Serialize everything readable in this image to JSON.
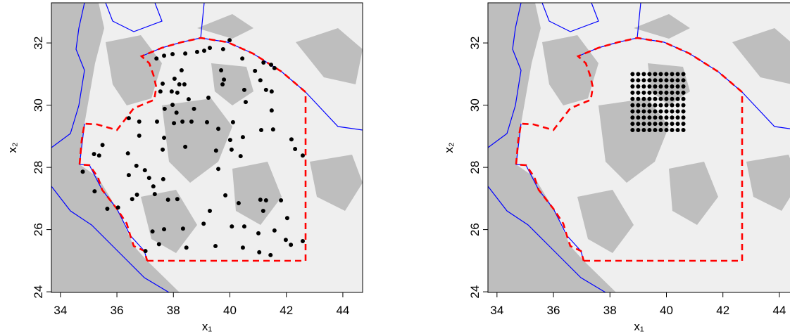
{
  "chart_data": [
    {
      "type": "scatter",
      "x_label": "x₁",
      "y_label": "x₂",
      "xlim": [
        33.68,
        44.7
      ],
      "ylim": [
        23.98,
        33.29
      ],
      "xticks": [
        34,
        36,
        38,
        40,
        42,
        44
      ],
      "yticks": [
        24,
        26,
        28,
        30,
        32
      ],
      "series": [
        {
          "color": "#000000",
          "x": [
            37.4,
            37.67,
            37.97,
            38.42,
            38.84,
            39.09,
            39.29,
            39.76,
            39.99,
            40.44,
            40.89,
            41.19,
            41.46,
            41.58,
            38.29,
            38.04,
            37.62,
            37.54,
            37.94,
            38.21,
            38.39,
            38.14,
            38.54,
            39.24,
            39.69,
            39.79,
            39.74,
            40.51,
            40.56,
            41.08,
            41.28,
            41.48,
            41.48,
            41.53,
            38.11,
            38.73,
            37.97,
            37.69,
            36.79,
            36.42,
            36.79,
            37.42,
            38.02,
            38.32,
            38.64,
            39.19,
            39.59,
            40.11,
            40.01,
            40.46,
            40.06,
            40.38,
            41.11,
            42.18,
            42.31,
            42.58,
            37.67,
            37.62,
            38.42,
            39.51,
            39.59,
            36.39,
            36.69,
            36.99,
            36.42,
            37.14,
            37.64,
            35.49,
            35.37,
            34.79,
            35.21,
            36.71,
            37.29,
            37.34,
            36.54,
            37.81,
            38.14,
            39.84,
            40.31,
            41.08,
            41.28,
            41.81,
            41.18,
            39.29,
            38.34,
            37.67,
            40.07,
            39.07,
            40.51,
            41.58,
            41.01,
            41.98,
            42.16,
            42.58,
            42.03,
            37.26,
            37.49,
            38.46,
            39.49,
            40.46,
            41.04,
            41.44,
            37.01,
            36.04,
            35.66,
            35.19
          ],
          "y": [
            31.5,
            31.59,
            31.64,
            31.66,
            31.71,
            31.75,
            31.84,
            31.8,
            32.09,
            31.5,
            31.1,
            31.37,
            31.3,
            31.19,
            31.12,
            30.85,
            30.69,
            30.44,
            30.44,
            30.67,
            30.67,
            30.4,
            30.19,
            30.24,
            31.12,
            30.82,
            30.67,
            30.49,
            30.1,
            30.8,
            30.49,
            30.44,
            29.83,
            29.22,
            29.76,
            29.88,
            30.01,
            29.88,
            29.02,
            29.58,
            29.47,
            29.47,
            29.42,
            29.47,
            29.47,
            29.45,
            29.24,
            29.45,
            28.88,
            28.97,
            28.57,
            28.36,
            29.2,
            28.9,
            28.59,
            28.38,
            28.95,
            28.57,
            28.66,
            28.54,
            27.95,
            28.45,
            28.05,
            27.91,
            27.75,
            27.66,
            27.62,
            28.72,
            28.38,
            27.86,
            27.23,
            27.12,
            27.39,
            27.14,
            26.98,
            26.96,
            26.98,
            27.1,
            26.85,
            26.96,
            26.94,
            26.94,
            26.6,
            26.6,
            26.03,
            26.01,
            26.1,
            26.19,
            26.1,
            25.97,
            25.88,
            25.67,
            25.51,
            25.63,
            26.37,
            25.94,
            25.53,
            25.42,
            25.47,
            25.42,
            25.27,
            25.18,
            25.31,
            26.71,
            26.67,
            28.43
          ]
        }
      ]
    },
    {
      "type": "scatter",
      "x_label": "x₁",
      "y_label": "x₂",
      "xlim": [
        33.68,
        44.7
      ],
      "ylim": [
        23.98,
        33.29
      ],
      "xticks": [
        34,
        36,
        38,
        40,
        42,
        44
      ],
      "yticks": [
        24,
        26,
        28,
        30,
        32
      ],
      "series": [
        {
          "color": "#000000",
          "x": [
            38.8,
            39.0,
            39.2,
            39.4,
            39.6,
            39.8,
            40.0,
            40.2,
            40.4,
            40.6,
            38.8,
            39.0,
            39.2,
            39.4,
            39.6,
            39.8,
            40.0,
            40.2,
            40.4,
            40.6,
            38.8,
            39.0,
            39.2,
            39.4,
            39.6,
            39.8,
            40.0,
            40.2,
            40.4,
            40.6,
            38.8,
            39.0,
            39.2,
            39.4,
            39.6,
            39.8,
            40.0,
            40.2,
            40.4,
            40.6,
            38.8,
            39.0,
            39.2,
            39.4,
            39.6,
            39.8,
            40.0,
            40.2,
            40.4,
            40.6,
            38.8,
            39.0,
            39.2,
            39.4,
            39.6,
            39.8,
            40.0,
            40.2,
            40.4,
            40.6,
            38.8,
            39.0,
            39.2,
            39.4,
            39.6,
            39.8,
            40.0,
            40.2,
            40.4,
            40.6,
            38.8,
            39.0,
            39.2,
            39.4,
            39.6,
            39.8,
            40.0,
            40.2,
            40.4,
            40.6,
            38.8,
            39.0,
            39.2,
            39.4,
            39.6,
            39.8,
            40.0,
            40.2,
            40.4,
            40.6,
            38.8,
            39.0,
            39.2,
            39.4,
            39.6,
            39.8,
            40.0,
            40.2,
            40.4,
            40.6
          ],
          "y": [
            31.0,
            31.0,
            31.0,
            31.0,
            31.0,
            31.0,
            31.0,
            31.0,
            31.0,
            31.0,
            30.8,
            30.8,
            30.8,
            30.8,
            30.8,
            30.8,
            30.8,
            30.8,
            30.8,
            30.8,
            30.6,
            30.6,
            30.6,
            30.6,
            30.6,
            30.6,
            30.6,
            30.6,
            30.6,
            30.6,
            30.4,
            30.4,
            30.4,
            30.4,
            30.4,
            30.4,
            30.4,
            30.4,
            30.4,
            30.4,
            30.2,
            30.2,
            30.2,
            30.2,
            30.2,
            30.2,
            30.2,
            30.2,
            30.2,
            30.2,
            30.0,
            30.0,
            30.0,
            30.0,
            30.0,
            30.0,
            30.0,
            30.0,
            30.0,
            30.0,
            29.8,
            29.8,
            29.8,
            29.8,
            29.8,
            29.8,
            29.8,
            29.8,
            29.8,
            29.8,
            29.6,
            29.6,
            29.6,
            29.6,
            29.6,
            29.6,
            29.6,
            29.6,
            29.6,
            29.6,
            29.4,
            29.4,
            29.4,
            29.4,
            29.4,
            29.4,
            29.4,
            29.4,
            29.4,
            29.4,
            29.2,
            29.2,
            29.2,
            29.2,
            29.2,
            29.2,
            29.2,
            29.2,
            29.2,
            29.2
          ]
        }
      ]
    }
  ]
}
